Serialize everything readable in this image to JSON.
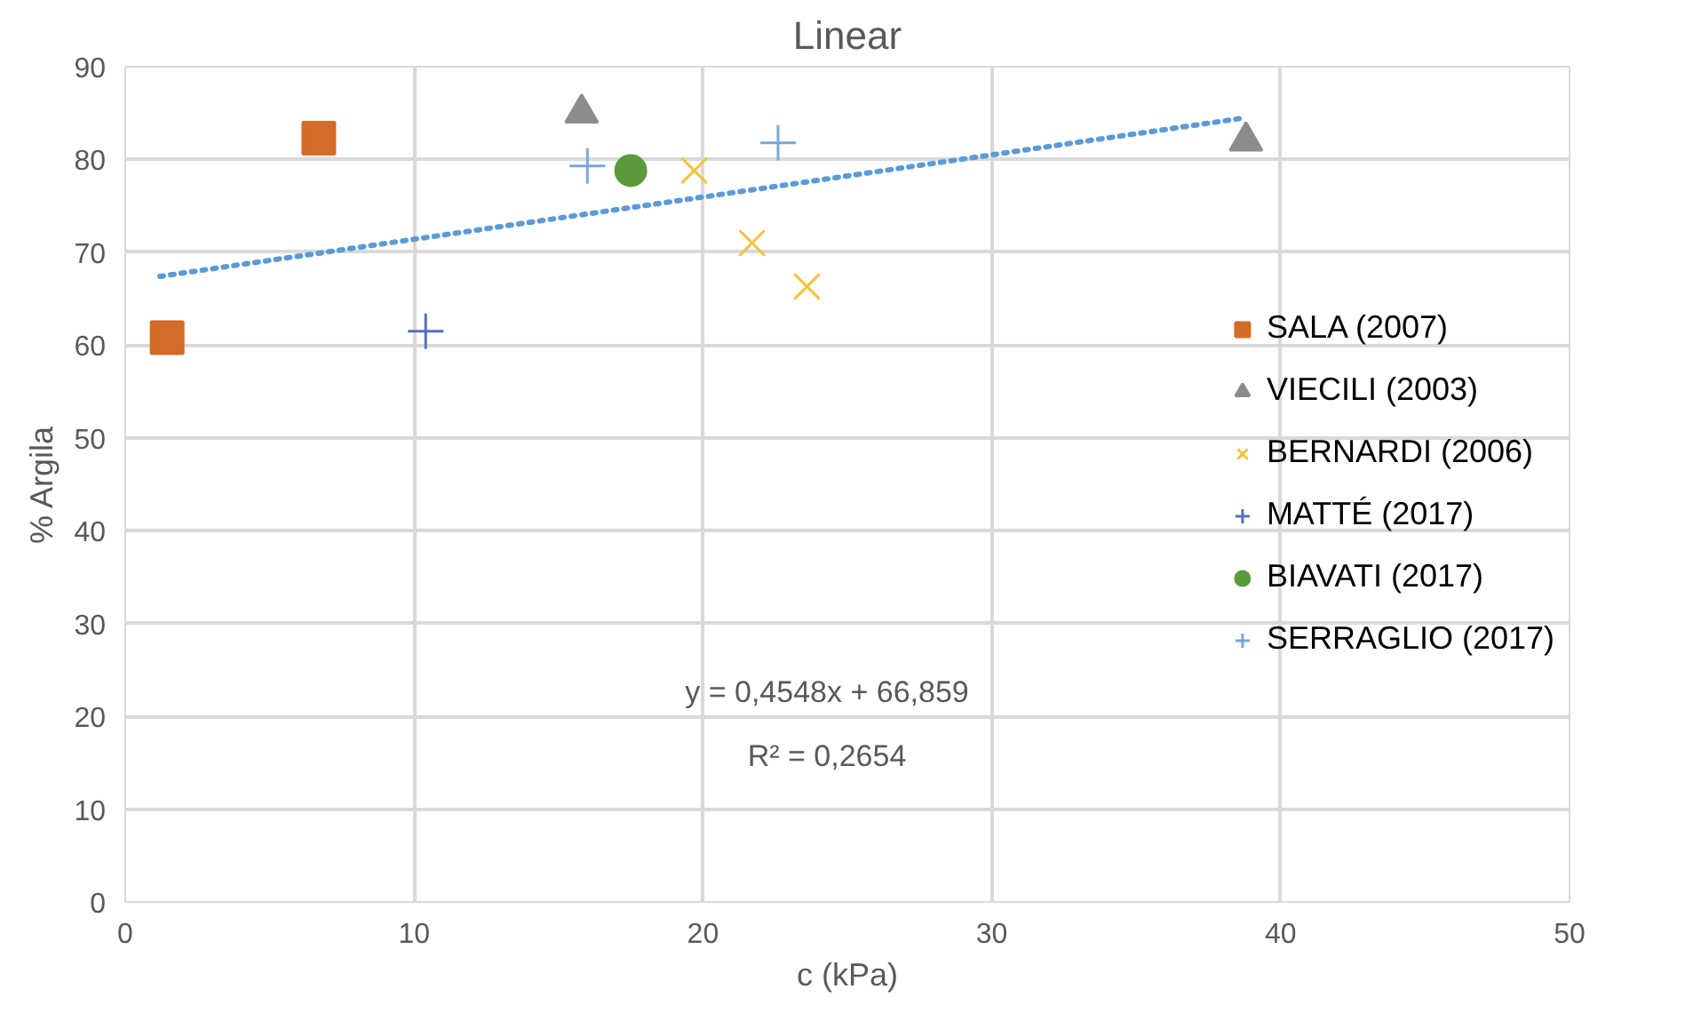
{
  "chart_data": {
    "type": "scatter",
    "title": "Linear",
    "xlabel": "c (kPa)",
    "ylabel": "% Argila",
    "xlim": [
      0,
      50
    ],
    "xticks": [
      0,
      10,
      20,
      30,
      40,
      50
    ],
    "ylim": [
      0,
      90
    ],
    "yticks": [
      0,
      10,
      20,
      30,
      40,
      50,
      60,
      70,
      80,
      90
    ],
    "grid": true,
    "legend": "right",
    "annotations": [
      "y = 0,4548x + 66,859",
      "R² = 0,2654"
    ],
    "series": [
      {
        "name": "SALA (2007)",
        "color": "#d46b26",
        "marker": "square",
        "x": [
          1.45,
          6.7
        ],
        "values": [
          60.8,
          82.3
        ]
      },
      {
        "name": "VIECILI (2003)",
        "color": "#8c8c8c",
        "marker": "triangle",
        "x": [
          15.8,
          38.8
        ],
        "values": [
          85,
          82
        ]
      },
      {
        "name": "BERNARDI (2006)",
        "color": "#f5c242",
        "marker": "x",
        "x": [
          19.7,
          21.7,
          23.6
        ],
        "values": [
          78.8,
          71,
          66.3
        ]
      },
      {
        "name": "MATTÉ (2017)",
        "color": "#5470c0",
        "marker": "cross",
        "x": [
          10.4
        ],
        "values": [
          61.5
        ]
      },
      {
        "name": "BIAVATI (2017)",
        "color": "#5a9a3a",
        "marker": "circle",
        "x": [
          17.5
        ],
        "values": [
          78.8
        ]
      },
      {
        "name": "SERRAGLIO (2017)",
        "color": "#7aa6dc",
        "marker": "cross",
        "x": [
          16.0,
          22.6
        ],
        "values": [
          79.3,
          81.8
        ]
      },
      {
        "type": "line",
        "color": "#5b9bd5",
        "line_style": "dotted",
        "marker": "none",
        "x": [
          1.2,
          38.8
        ],
        "values": [
          67.4,
          84.5
        ]
      }
    ]
  }
}
